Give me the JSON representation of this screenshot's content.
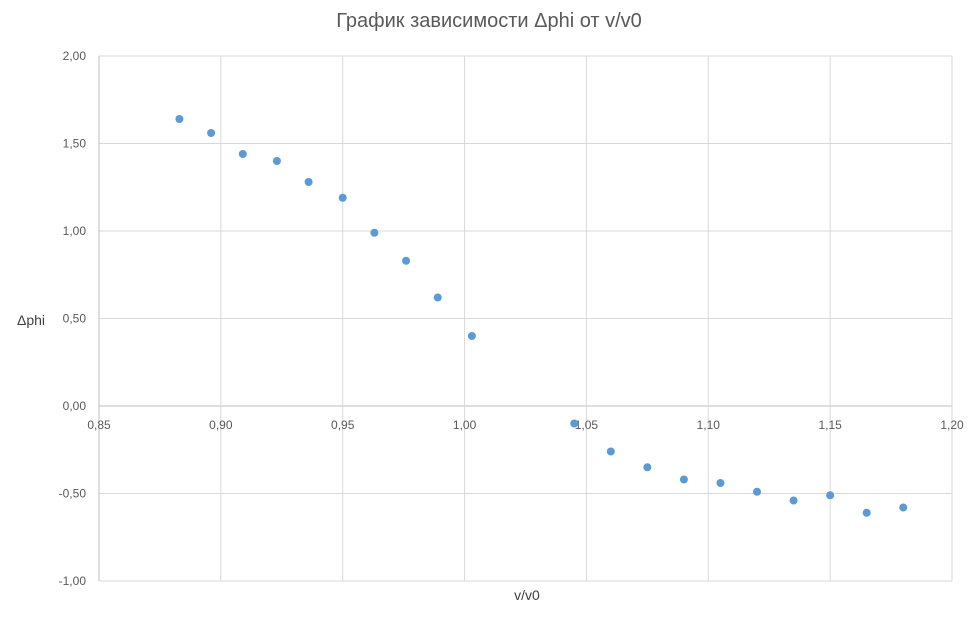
{
  "chart_data": {
    "type": "scatter",
    "title": "График зависимости Δphi  от v/v0",
    "xlabel": "v/v0",
    "ylabel": "Δphi",
    "xlim": [
      0.85,
      1.2
    ],
    "ylim": [
      -1.0,
      2.0
    ],
    "x_ticks": [
      "0,85",
      "0,90",
      "0,95",
      "1,00",
      "1,05",
      "1,10",
      "1,15",
      "1,20"
    ],
    "y_ticks": [
      "2,00",
      "1,50",
      "1,00",
      "0,50",
      "0,00",
      "-0,50",
      "-1,00"
    ],
    "grid": true,
    "marker_color": "#5b9bd5",
    "series": [
      {
        "points": [
          {
            "x": 0.883,
            "y": 1.64
          },
          {
            "x": 0.896,
            "y": 1.56
          },
          {
            "x": 0.909,
            "y": 1.44
          },
          {
            "x": 0.923,
            "y": 1.4
          },
          {
            "x": 0.936,
            "y": 1.28
          },
          {
            "x": 0.95,
            "y": 1.19
          },
          {
            "x": 0.963,
            "y": 0.99
          },
          {
            "x": 0.976,
            "y": 0.83
          },
          {
            "x": 0.989,
            "y": 0.62
          },
          {
            "x": 1.003,
            "y": 0.4
          },
          {
            "x": 1.045,
            "y": -0.1
          },
          {
            "x": 1.06,
            "y": -0.26
          },
          {
            "x": 1.075,
            "y": -0.35
          },
          {
            "x": 1.09,
            "y": -0.42
          },
          {
            "x": 1.105,
            "y": -0.44
          },
          {
            "x": 1.12,
            "y": -0.49
          },
          {
            "x": 1.135,
            "y": -0.54
          },
          {
            "x": 1.15,
            "y": -0.51
          },
          {
            "x": 1.165,
            "y": -0.61
          },
          {
            "x": 1.18,
            "y": -0.58
          }
        ]
      }
    ]
  }
}
